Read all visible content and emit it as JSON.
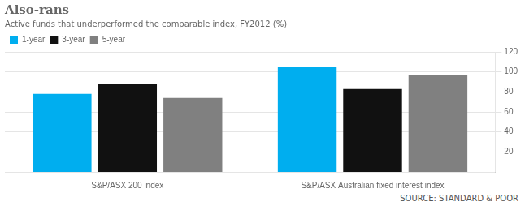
{
  "chart_data": {
    "type": "bar",
    "title": "Also-rans",
    "subtitle": "Active funds that underperformed the comparable index, FY2012 (%)",
    "source": "SOURCE: STANDARD & POOR",
    "categories": [
      "S&P/ASX 200 index",
      "S&P/ASX Australian fixed interest index"
    ],
    "series": [
      {
        "name": "1-year",
        "color": "#00AEEF",
        "values": [
          78,
          105
        ]
      },
      {
        "name": "3-year",
        "color": "#111111",
        "values": [
          88,
          83
        ]
      },
      {
        "name": "5-year",
        "color": "#808080",
        "values": [
          74,
          97
        ]
      }
    ],
    "ylim": [
      0,
      120
    ],
    "yticks": [
      20,
      40,
      60,
      80,
      100,
      120
    ],
    "grid": true,
    "legend": "upper left"
  }
}
